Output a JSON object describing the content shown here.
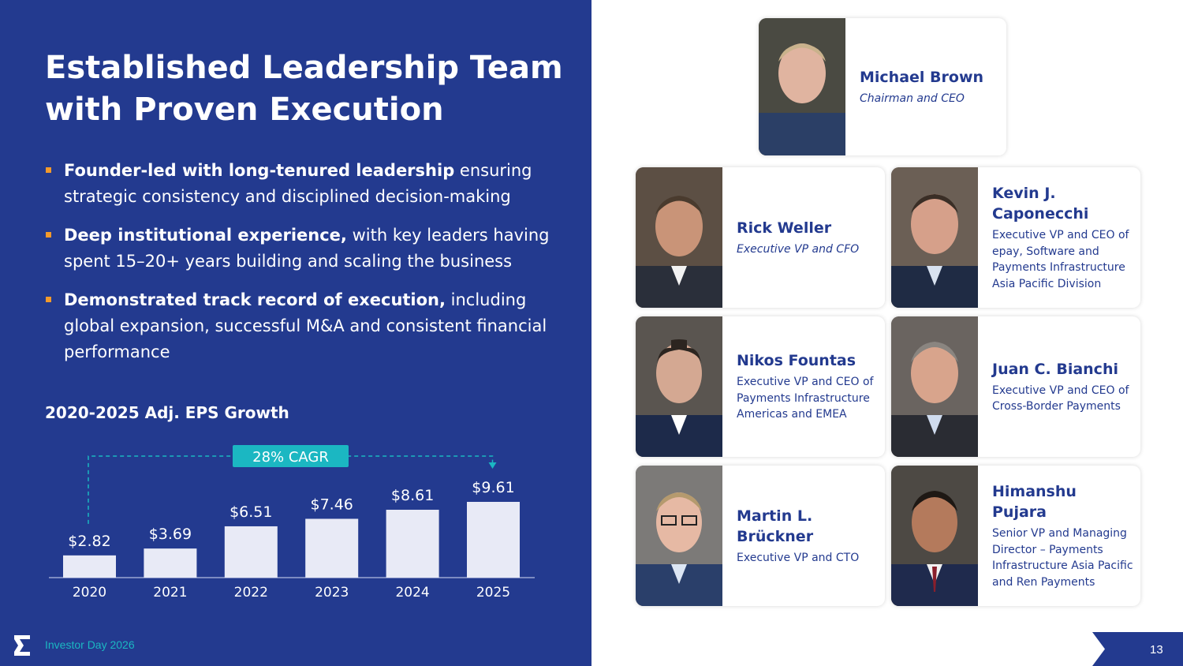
{
  "slide": {
    "title_line1": "Established Leadership Team",
    "title_line2": "with Proven Execution",
    "bullets": [
      {
        "bold": "Founder-led with long-tenured leadership",
        "text": " ensuring strategic consistency and disciplined decision-making"
      },
      {
        "bold": "Deep institutional experience,",
        "text": " with key leaders having spent 15–20+ years building and scaling the business"
      },
      {
        "bold": "Demonstrated track record of execution,",
        "text": " including global expansion, successful M&A and consistent financial performance"
      }
    ],
    "chart_title": "2020-2025 Adj. EPS Growth",
    "footer_text": "Investor Day 2026",
    "page_number": "13"
  },
  "chart_data": {
    "type": "bar",
    "title": "2020-2025 Adj. EPS Growth",
    "categories": [
      "2020",
      "2021",
      "2022",
      "2023",
      "2024",
      "2025"
    ],
    "values": [
      2.82,
      3.69,
      6.51,
      7.46,
      8.61,
      9.61
    ],
    "value_labels": [
      "$2.82",
      "$3.69",
      "$6.51",
      "$7.46",
      "$8.61",
      "$9.61"
    ],
    "annotation": "28% CAGR",
    "xlabel": "",
    "ylabel": "",
    "ylim": [
      0,
      9.61
    ],
    "grid": false,
    "colors": {
      "bar": "#e8eaf6",
      "annotation_bg": "#1bb7c2",
      "dashed_line": "#1bb7c2",
      "axis": "#9aa6d4"
    }
  },
  "team": [
    {
      "name": "Michael Brown",
      "role": "Chairman and CEO",
      "italic": true
    },
    {
      "name": "Rick Weller",
      "role": "Executive VP and CFO",
      "italic": true
    },
    {
      "name": "Kevin J. Caponecchi",
      "role": "Executive VP and CEO of epay, Software and Payments Infrastructure Asia Pacific Division",
      "italic": false
    },
    {
      "name": "Nikos Fountas",
      "role": "Executive VP and CEO of Payments Infrastructure Americas and EMEA",
      "italic": false
    },
    {
      "name": "Juan C. Bianchi",
      "role": "Executive VP and CEO of Cross-Border Payments",
      "italic": false
    },
    {
      "name": "Martin L. Brückner",
      "role": "Executive VP and CTO",
      "italic": false
    },
    {
      "name": "Himanshu Pujara",
      "role": "Senior VP and Managing Director – Payments Infrastructure Asia Pacific and Ren Payments",
      "italic": false
    }
  ],
  "colors": {
    "navy": "#233a8f",
    "accent": "#f39a2b",
    "teal": "#1bb7c2"
  }
}
